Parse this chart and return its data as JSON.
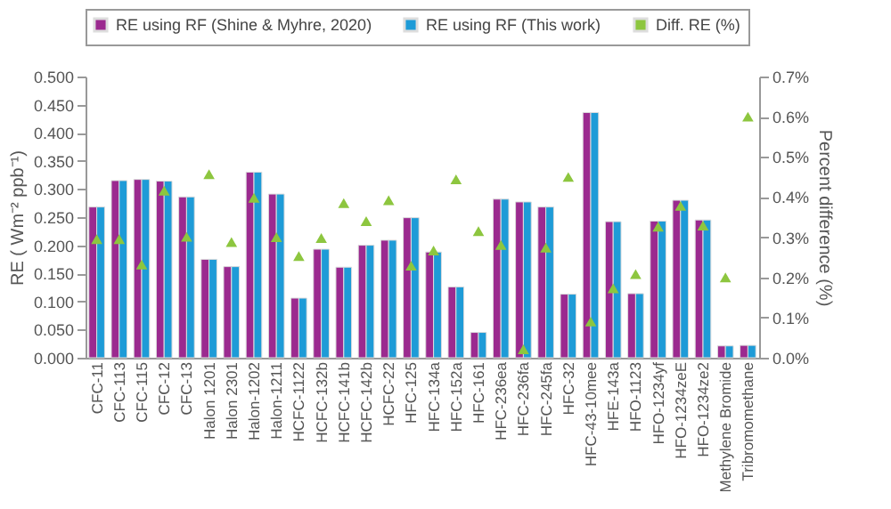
{
  "chart_data": {
    "type": "bar",
    "ylabel": "RE ( Wm⁻² ppb⁻¹)",
    "y2label": "Percent difference (%)",
    "categories": [
      "CFC-11",
      "CFC-113",
      "CFC-115",
      "CFC-12",
      "CFC-13",
      "Halon 1201",
      "Halon 2301",
      "Halon-1202",
      "Halon-1211",
      "HCFC-1122",
      "HCFC-132b",
      "HCFC-141b",
      "HCFC-142b",
      "HCFC-22",
      "HFC-125",
      "HFC-134a",
      "HFC-152a",
      "HFC-161",
      "HFC-236ea",
      "HFC-236fa",
      "HFC-245fa",
      "HFC-32",
      "HFC-43-10mee",
      "HFE-143a",
      "HFO-1123",
      "HFO-1234yf",
      "HFO-1234zeE",
      "HFO-1234ze2",
      "Methylene Bromide",
      "Tribromomethane"
    ],
    "series": [
      {
        "name": "RE using RF (Shine & Myhre, 2020)",
        "type": "bar",
        "color": "#9b2a8f",
        "values": [
          0.268,
          0.315,
          0.317,
          0.314,
          0.286,
          0.175,
          0.162,
          0.33,
          0.291,
          0.106,
          0.193,
          0.161,
          0.2,
          0.209,
          0.249,
          0.188,
          0.126,
          0.045,
          0.282,
          0.277,
          0.268,
          0.113,
          0.436,
          0.242,
          0.114,
          0.243,
          0.28,
          0.245,
          0.021,
          0.022
        ]
      },
      {
        "name": "RE using RF (This work)",
        "type": "bar",
        "color": "#1e9bd7",
        "values": [
          0.268,
          0.315,
          0.317,
          0.314,
          0.286,
          0.175,
          0.162,
          0.33,
          0.291,
          0.106,
          0.193,
          0.161,
          0.2,
          0.209,
          0.249,
          0.188,
          0.126,
          0.045,
          0.282,
          0.277,
          0.268,
          0.113,
          0.436,
          0.242,
          0.114,
          0.243,
          0.28,
          0.245,
          0.021,
          0.022
        ]
      },
      {
        "name": "Diff. RE (%)",
        "type": "scatter",
        "axis": "y2",
        "marker": "triangle",
        "color": "#8dc63f",
        "values": [
          0.295,
          0.295,
          0.232,
          0.416,
          0.301,
          0.457,
          0.288,
          0.398,
          0.3,
          0.253,
          0.298,
          0.385,
          0.34,
          0.392,
          0.229,
          0.267,
          0.444,
          0.315,
          0.281,
          0.021,
          0.274,
          0.45,
          0.09,
          0.173,
          0.208,
          0.326,
          0.378,
          0.329,
          0.2,
          0.6
        ]
      }
    ],
    "ylim": [
      0,
      0.5
    ],
    "yticks": [
      {
        "value": 0,
        "label": "0.000"
      },
      {
        "value": 0.05,
        "label": "0.050"
      },
      {
        "value": 0.1,
        "label": "0.100"
      },
      {
        "value": 0.15,
        "label": "0.150"
      },
      {
        "value": 0.2,
        "label": "0.200"
      },
      {
        "value": 0.25,
        "label": "0.250"
      },
      {
        "value": 0.3,
        "label": "0.300"
      },
      {
        "value": 0.35,
        "label": "0.350"
      },
      {
        "value": 0.4,
        "label": "0.400"
      },
      {
        "value": 0.45,
        "label": "0.450"
      },
      {
        "value": 0.5,
        "label": "0.500"
      }
    ],
    "y2lim": [
      0,
      0.7
    ],
    "y2ticks": [
      {
        "value": 0,
        "label": "0.0%"
      },
      {
        "value": 0.1,
        "label": "0.1%"
      },
      {
        "value": 0.2,
        "label": "0.2%"
      },
      {
        "value": 0.3,
        "label": "0.3%"
      },
      {
        "value": 0.4,
        "label": "0.4%"
      },
      {
        "value": 0.5,
        "label": "0.5%"
      },
      {
        "value": 0.6,
        "label": "0.6%"
      },
      {
        "value": 0.7,
        "label": "0.7%"
      }
    ],
    "legend": "top"
  }
}
